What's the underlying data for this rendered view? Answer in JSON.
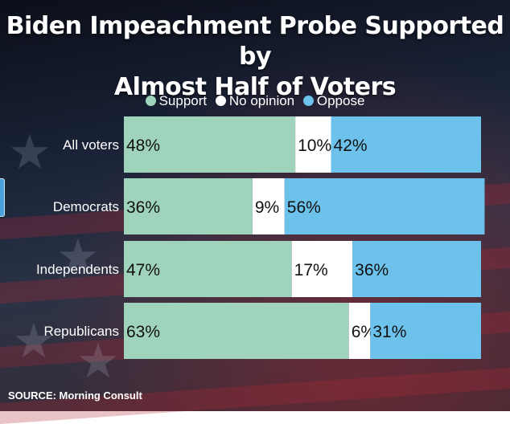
{
  "title_lines": [
    "Biden Impeachment Probe Supported by",
    "Almost Half of Voters"
  ],
  "source": "SOURCE: Morning Consult",
  "colors": {
    "support": "#9fd3bc",
    "no_opinion": "#ffffff",
    "oppose": "#6cc2ea"
  },
  "chart_data": {
    "type": "bar",
    "orientation": "horizontal",
    "stacked": true,
    "title": "Biden Impeachment Probe Supported by Almost Half of Voters",
    "legend_position": "top",
    "categories": [
      "All voters",
      "Democrats",
      "Independents",
      "Republicans"
    ],
    "series": [
      {
        "name": "Support",
        "color": "#9fd3bc",
        "values": [
          48,
          36,
          47,
          63
        ]
      },
      {
        "name": "No opinion",
        "color": "#ffffff",
        "values": [
          10,
          9,
          17,
          6
        ]
      },
      {
        "name": "Oppose",
        "color": "#6cc2ea",
        "values": [
          42,
          56,
          36,
          31
        ]
      }
    ],
    "unit": "%"
  }
}
